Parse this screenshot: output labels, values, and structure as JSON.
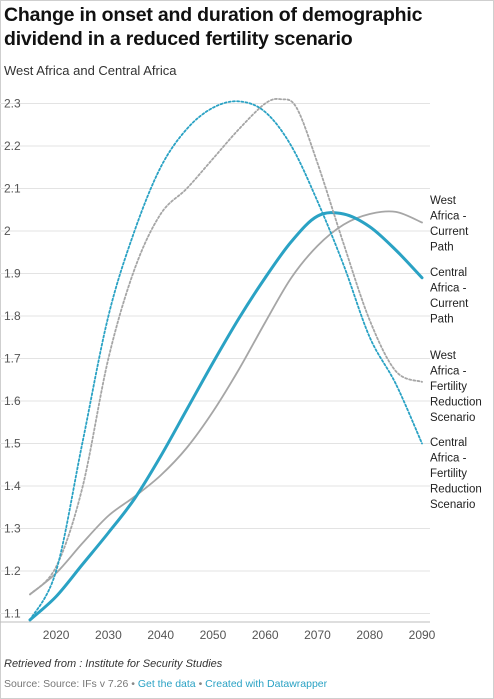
{
  "title": "Change in onset and duration of demographic dividend in a reduced fertility scenario",
  "subtitle": "West Africa and Central Africa",
  "footer": {
    "retrieved": "Retrieved from : Institute for Security Studies",
    "source": "Source: Source: IFs v 7.26",
    "separator": "•",
    "get_data": "Get the data",
    "created_with": "Created with Datawrapper"
  },
  "colors": {
    "gray": "#a6a6a6",
    "blue": "#2aa2c4",
    "grid": "#e3e3e3"
  },
  "chart_data": {
    "type": "line",
    "title": "Change in onset and duration of demographic dividend in a reduced fertility scenario",
    "subtitle": "West Africa and Central Africa",
    "xlim": [
      2015,
      2090
    ],
    "ylim": [
      1.08,
      2.32
    ],
    "xticks": [
      2020,
      2030,
      2040,
      2050,
      2060,
      2070,
      2080,
      2090
    ],
    "yticks": [
      1.1,
      1.2,
      1.3,
      1.4,
      1.5,
      1.6,
      1.7,
      1.8,
      1.9,
      2,
      2.1,
      2.2,
      2.3
    ],
    "ytick_labels": [
      "1.1",
      "1.2",
      "1.3",
      "1.4",
      "1.5",
      "1.6",
      "1.7",
      "1.8",
      "1.9",
      "2",
      "2.1",
      "2.2",
      "2.3"
    ],
    "grid": true,
    "series": [
      {
        "name": "West Africa - Current Path",
        "label_lines": [
          "West",
          "Africa -",
          "Current",
          "Path"
        ],
        "color": "#a6a6a6",
        "style": "solid",
        "width": 1.8,
        "x": [
          2015,
          2020,
          2025,
          2030,
          2035,
          2040,
          2045,
          2050,
          2055,
          2060,
          2065,
          2070,
          2075,
          2080,
          2085,
          2090
        ],
        "y": [
          1.145,
          1.195,
          1.265,
          1.33,
          1.375,
          1.425,
          1.49,
          1.575,
          1.675,
          1.785,
          1.89,
          1.965,
          2.015,
          2.04,
          2.045,
          2.02
        ]
      },
      {
        "name": "Central Africa - Current Path",
        "label_lines": [
          "Central",
          "Africa -",
          "Current",
          "Path"
        ],
        "color": "#2aa2c4",
        "style": "solid",
        "width": 3,
        "x": [
          2015,
          2020,
          2025,
          2030,
          2035,
          2040,
          2045,
          2050,
          2055,
          2060,
          2065,
          2070,
          2075,
          2080,
          2085,
          2090
        ],
        "y": [
          1.085,
          1.14,
          1.215,
          1.29,
          1.37,
          1.47,
          1.58,
          1.69,
          1.795,
          1.89,
          1.975,
          2.035,
          2.04,
          2.01,
          1.955,
          1.89
        ]
      },
      {
        "name": "West Africa - Fertility Reduction Scenario",
        "label_lines": [
          "West",
          "Africa -",
          "Fertility",
          "Reduction",
          "Scenario"
        ],
        "color": "#a6a6a6",
        "style": "dotted",
        "width": 1.8,
        "x": [
          2015,
          2020,
          2025,
          2030,
          2035,
          2040,
          2045,
          2050,
          2055,
          2060,
          2063,
          2066,
          2070,
          2075,
          2080,
          2085,
          2090
        ],
        "y": [
          1.145,
          1.21,
          1.395,
          1.7,
          1.91,
          2.04,
          2.1,
          2.17,
          2.24,
          2.3,
          2.31,
          2.29,
          2.16,
          1.97,
          1.79,
          1.67,
          1.645
        ]
      },
      {
        "name": "Central Africa - Fertility Reduction Scenario",
        "label_lines": [
          "Central",
          "Africa -",
          "Fertility",
          "Reduction",
          "Scenario"
        ],
        "color": "#2aa2c4",
        "style": "dotted",
        "width": 1.8,
        "x": [
          2015,
          2020,
          2025,
          2030,
          2035,
          2040,
          2045,
          2050,
          2055,
          2060,
          2065,
          2070,
          2075,
          2080,
          2085,
          2090
        ],
        "y": [
          1.085,
          1.2,
          1.5,
          1.8,
          2.0,
          2.15,
          2.24,
          2.29,
          2.305,
          2.28,
          2.2,
          2.07,
          1.92,
          1.75,
          1.64,
          1.5
        ]
      }
    ]
  }
}
